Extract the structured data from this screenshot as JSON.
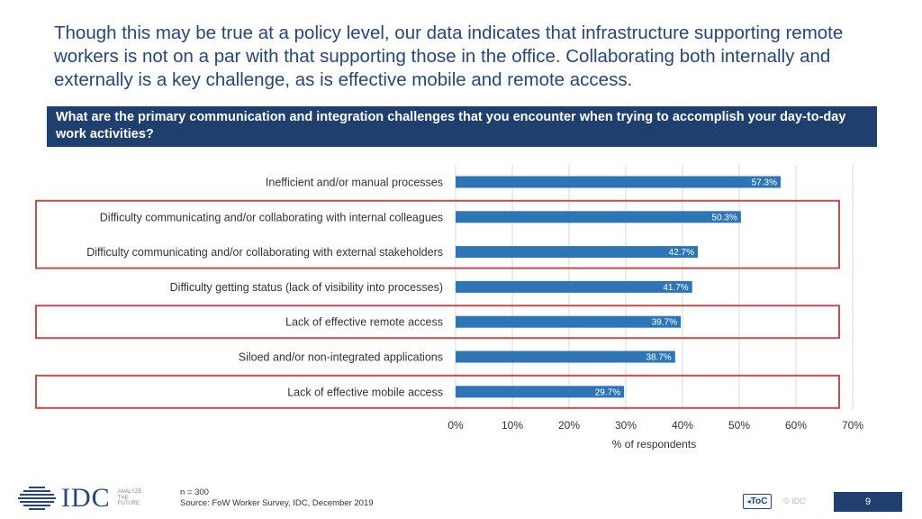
{
  "intro_text": "Though this may be true at a policy level, our data indicates that infrastructure supporting remote workers is not on a par with that supporting those in the office. Collaborating both internally and externally is a key challenge, as is effective mobile and remote access.",
  "question": "What are the primary communication and integration challenges that you encounter when trying to accomplish your day-to-day work activities?",
  "colors": {
    "bar": "#2e75b6",
    "banner": "#1f3f6e",
    "highlight": "#c0504d",
    "grid": "#d9d9d9",
    "text_blue": "#27467a"
  },
  "chart_data": {
    "type": "bar",
    "orientation": "horizontal",
    "categories": [
      "Inefficient and/or manual processes",
      "Difficulty communicating and/or collaborating with internal colleagues",
      "Difficulty communicating and/or collaborating with external stakeholders",
      "Difficulty getting status (lack of visibility into processes)",
      "Lack of effective remote access",
      "Siloed and/or non-integrated applications",
      "Lack of effective mobile access"
    ],
    "values": [
      57.3,
      50.3,
      42.7,
      41.7,
      39.7,
      38.7,
      29.7
    ],
    "value_labels": [
      "57.3%",
      "50.3%",
      "42.7%",
      "41.7%",
      "39.7%",
      "38.7%",
      "29.7%"
    ],
    "xlim": [
      0,
      70
    ],
    "xticks": [
      "0%",
      "10%",
      "20%",
      "30%",
      "40%",
      "50%",
      "60%",
      "70%"
    ],
    "xlabel": "% of respondents",
    "grid": true,
    "highlighted_groups": [
      [
        1,
        2
      ],
      [
        4
      ],
      [
        6
      ]
    ]
  },
  "footer": {
    "logo_text": "IDC",
    "logo_tagline": [
      "ANALYZE",
      "THE",
      "FUTURE"
    ],
    "sample_size": "n = 300",
    "source": "Source: FoW Worker Survey, IDC, December 2019",
    "toc_label": "ToC",
    "copyright": "© IDC",
    "page_number": "9"
  }
}
